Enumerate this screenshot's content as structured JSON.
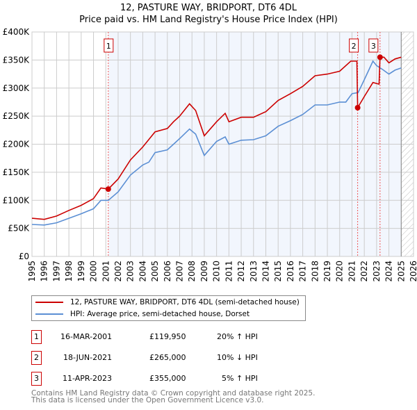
{
  "title": "12, PASTURE WAY, BRIDPORT, DT6 4DL",
  "subtitle": "Price paid vs. HM Land Registry's House Price Index (HPI)",
  "chart_data": {
    "type": "line",
    "xlim": [
      1995,
      2026
    ],
    "ylim": [
      0,
      400000
    ],
    "yticks": [
      {
        "v": 0,
        "label": "£0"
      },
      {
        "v": 50000,
        "label": "£50K"
      },
      {
        "v": 100000,
        "label": "£100K"
      },
      {
        "v": 150000,
        "label": "£150K"
      },
      {
        "v": 200000,
        "label": "£200K"
      },
      {
        "v": 250000,
        "label": "£250K"
      },
      {
        "v": 300000,
        "label": "£300K"
      },
      {
        "v": 350000,
        "label": "£350K"
      },
      {
        "v": 400000,
        "label": "£400K"
      }
    ],
    "xticks": [
      "1995",
      "1996",
      "1997",
      "1998",
      "1999",
      "2000",
      "2001",
      "2002",
      "2003",
      "2004",
      "2005",
      "2006",
      "2007",
      "2008",
      "2009",
      "2010",
      "2011",
      "2012",
      "2013",
      "2014",
      "2015",
      "2016",
      "2017",
      "2018",
      "2019",
      "2020",
      "2021",
      "2022",
      "2023",
      "2024",
      "2025",
      "2026"
    ],
    "series": [
      {
        "name": "12, PASTURE WAY, BRIDPORT, DT6 4DL (semi-detached house)",
        "color": "#cc0000",
        "x": [
          1995,
          1996,
          1997,
          1998,
          1999,
          2000,
          2000.6,
          2001.2,
          2002,
          2003,
          2004,
          2005,
          2006,
          2006.5,
          2007,
          2007.8,
          2008.3,
          2009,
          2010,
          2010.7,
          2011,
          2012,
          2013,
          2014,
          2015,
          2016,
          2017,
          2018,
          2019,
          2020,
          2020.9,
          2021.4,
          2021.46,
          2022,
          2022.7,
          2023.2,
          2023.28,
          2023.6,
          2024,
          2024.5,
          2025
        ],
        "y": [
          68000,
          66000,
          72000,
          82000,
          91000,
          103000,
          122000,
          120000,
          138000,
          172000,
          195000,
          222000,
          228000,
          240000,
          250000,
          272000,
          260000,
          215000,
          240000,
          255000,
          240000,
          248000,
          248000,
          258000,
          278000,
          290000,
          303000,
          322000,
          325000,
          330000,
          348000,
          348000,
          265000,
          285000,
          310000,
          307000,
          355000,
          355000,
          345000,
          352000,
          355000
        ]
      },
      {
        "name": "HPI: Average price, semi-detached house, Dorset",
        "color": "#5b8fd4",
        "x": [
          1995,
          1996,
          1997,
          1998,
          1999,
          2000,
          2000.6,
          2001.2,
          2002,
          2003,
          2004,
          2004.5,
          2005,
          2006,
          2006.5,
          2007,
          2007.8,
          2008.3,
          2009,
          2010,
          2010.7,
          2011,
          2012,
          2013,
          2014,
          2015,
          2016,
          2017,
          2018,
          2019,
          2020,
          2020.5,
          2021,
          2021.5,
          2022,
          2022.7,
          2023,
          2023.5,
          2024,
          2024.5,
          2025
        ],
        "y": [
          57000,
          56000,
          60000,
          68000,
          76000,
          85000,
          100000,
          100000,
          115000,
          145000,
          163000,
          168000,
          185000,
          190000,
          200000,
          210000,
          227000,
          218000,
          180000,
          205000,
          213000,
          200000,
          207000,
          208000,
          215000,
          232000,
          242000,
          253000,
          270000,
          270000,
          275000,
          275000,
          290000,
          292000,
          315000,
          348000,
          340000,
          333000,
          325000,
          332000,
          336000
        ]
      }
    ],
    "sales": [
      {
        "id": "1",
        "x": 2001.2,
        "y": 119950
      },
      {
        "id": "2",
        "x": 2021.46,
        "y": 265000
      },
      {
        "id": "3",
        "x": 2023.28,
        "y": 355000
      }
    ],
    "forecast_start": 2025
  },
  "legend": {
    "red": "12, PASTURE WAY, BRIDPORT, DT6 4DL (semi-detached house)",
    "blue": "HPI: Average price, semi-detached house, Dorset"
  },
  "table": [
    {
      "id": "1",
      "date": "16-MAR-2001",
      "price": "£119,950",
      "hpi": "20% ↑ HPI"
    },
    {
      "id": "2",
      "date": "18-JUN-2021",
      "price": "£265,000",
      "hpi": "10% ↓ HPI"
    },
    {
      "id": "3",
      "date": "11-APR-2023",
      "price": "£355,000",
      "hpi": "5% ↑ HPI"
    }
  ],
  "footer": [
    "Contains HM Land Registry data © Crown copyright and database right 2025.",
    "This data is licensed under the Open Government Licence v3.0."
  ]
}
